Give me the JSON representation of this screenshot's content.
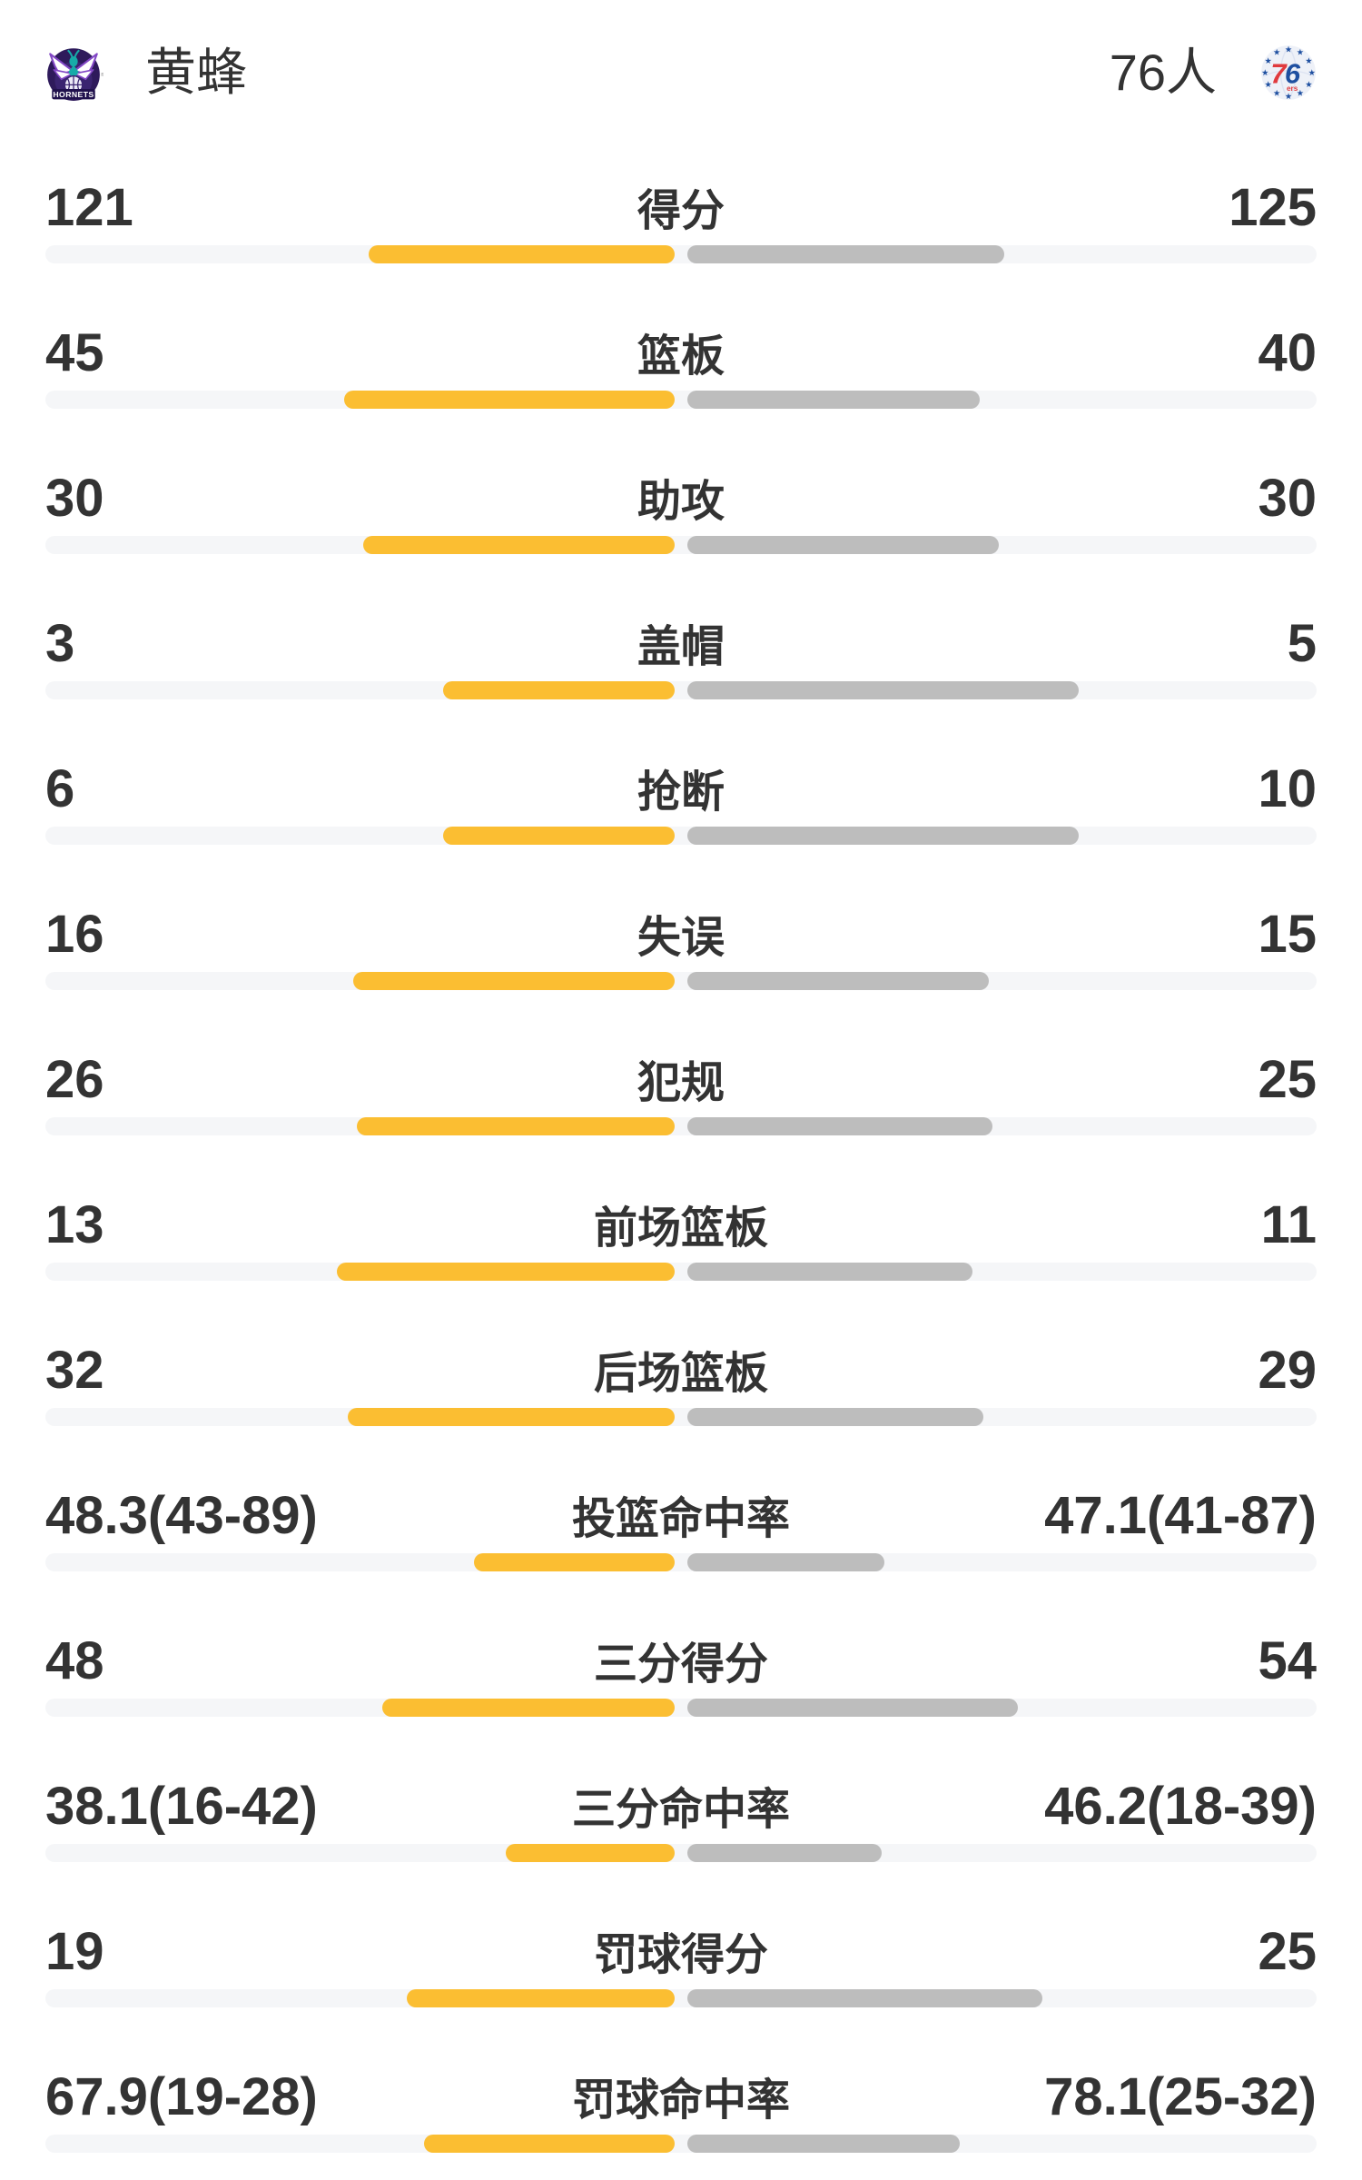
{
  "header": {
    "left_team": {
      "name": "黄蜂",
      "logo": "hornets-logo",
      "logo_text": "HORNETS"
    },
    "right_team": {
      "name": "76人",
      "logo": "sixers-logo",
      "logo_text_big": "76",
      "logo_text_small": "ers"
    }
  },
  "colors": {
    "left_bar": "#FBBE32",
    "right_bar": "#BDBDBD",
    "track": "#F5F6F8",
    "text": "#333333",
    "hornets_purple": "#2E1A5B",
    "hornets_teal": "#17ABA8",
    "sixers_blue": "#1E4FA0",
    "sixers_red": "#E03A3E"
  },
  "chart_data": {
    "type": "bar",
    "orientation": "horizontal-paired-from-center",
    "legend_position": "header",
    "grid": false,
    "teams": [
      "黄蜂",
      "76人"
    ],
    "rows": [
      {
        "label": "得分",
        "left": "121",
        "right": "125",
        "left_frac": 49.2,
        "right_frac": 50.8
      },
      {
        "label": "篮板",
        "left": "45",
        "right": "40",
        "left_frac": 52.94,
        "right_frac": 47.06
      },
      {
        "label": "助攻",
        "left": "30",
        "right": "30",
        "left_frac": 50.0,
        "right_frac": 50.0
      },
      {
        "label": "盖帽",
        "left": "3",
        "right": "5",
        "left_frac": 37.5,
        "right_frac": 62.5
      },
      {
        "label": "抢断",
        "left": "6",
        "right": "10",
        "left_frac": 37.5,
        "right_frac": 62.5
      },
      {
        "label": "失误",
        "left": "16",
        "right": "15",
        "left_frac": 51.61,
        "right_frac": 48.39
      },
      {
        "label": "犯规",
        "left": "26",
        "right": "25",
        "left_frac": 50.98,
        "right_frac": 49.02
      },
      {
        "label": "前场篮板",
        "left": "13",
        "right": "11",
        "left_frac": 54.17,
        "right_frac": 45.83
      },
      {
        "label": "后场篮板",
        "left": "32",
        "right": "29",
        "left_frac": 52.46,
        "right_frac": 47.54
      },
      {
        "label": "投篮命中率",
        "left": "48.3(43-89)",
        "right": "47.1(41-87)",
        "left_frac": 32.57,
        "right_frac": 32.02
      },
      {
        "label": "三分得分",
        "left": "48",
        "right": "54",
        "left_frac": 47.06,
        "right_frac": 52.94
      },
      {
        "label": "三分命中率",
        "left": "38.1(16-42)",
        "right": "46.2(18-39)",
        "left_frac": 27.59,
        "right_frac": 31.6
      },
      {
        "label": "罚球得分",
        "left": "19",
        "right": "25",
        "left_frac": 43.18,
        "right_frac": 56.82
      },
      {
        "label": "罚球命中率",
        "left": "67.9(19-28)",
        "right": "78.1(25-32)",
        "left_frac": 40.44,
        "right_frac": 43.85
      }
    ]
  }
}
